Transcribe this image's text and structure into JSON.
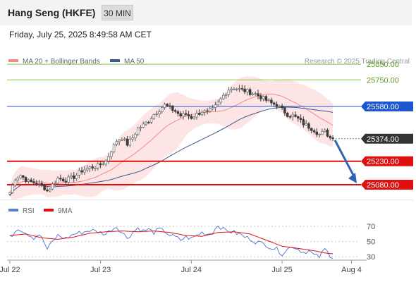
{
  "header": {
    "title": "Hang Seng (HKFE)",
    "timeframe": "30 MIN",
    "datetime": "Friday, July 25, 2025 8:49:58 AM CET"
  },
  "colors": {
    "bullish": "#5a5a5a",
    "bearish": "#3a3a3a",
    "ma20": "#f28a8a",
    "bollinger_fill": "#fde0e0",
    "ma50": "#3a5a8c",
    "green_level": "#8bc34a",
    "blue_level": "#1e56d0",
    "red_level": "#e01010",
    "current_price": "#333333",
    "arrow": "#2e64b4",
    "rsi": "#5b7fd1",
    "rsi_ma": "#e01010"
  },
  "chart_data": [
    {
      "type": "candlestick",
      "legend": [
        {
          "label": "MA 20 + Bollinger Bands",
          "color": "#f28a8a"
        },
        {
          "label": "MA 50",
          "color": "#3a5a8c"
        }
      ],
      "watermark": "Research © 2025 Trading Central",
      "ylim": [
        24990,
        25900
      ],
      "price_levels": [
        {
          "value": "25850.00",
          "kind": "resistance",
          "color": "#8bc34a"
        },
        {
          "value": "25750.00",
          "kind": "resistance",
          "color": "#8bc34a"
        },
        {
          "value": "25580.00",
          "kind": "pivot",
          "color": "#1e56d0"
        },
        {
          "value": "25374.00",
          "kind": "current",
          "color": "#333333"
        },
        {
          "value": "25230.00",
          "kind": "target",
          "color": "#e01010"
        },
        {
          "value": "25080.00",
          "kind": "target",
          "color": "#e01010"
        }
      ],
      "x_ticks": [
        "Jul 22",
        "Jul 23",
        "Jul 24",
        "Jul 25",
        "Aug 4"
      ],
      "x_tick_positions": [
        0,
        34,
        68,
        102,
        128
      ],
      "total_bars": 131,
      "anchors": [
        [
          0,
          25030
        ],
        [
          2,
          25120
        ],
        [
          4,
          25140
        ],
        [
          7,
          25100
        ],
        [
          10,
          25090
        ],
        [
          13,
          25060
        ],
        [
          14,
          25040
        ],
        [
          16,
          25080
        ],
        [
          18,
          25120
        ],
        [
          21,
          25110
        ],
        [
          24,
          25130
        ],
        [
          27,
          25170
        ],
        [
          30,
          25190
        ],
        [
          33,
          25200
        ],
        [
          36,
          25230
        ],
        [
          38,
          25300
        ],
        [
          40,
          25360
        ],
        [
          42,
          25380
        ],
        [
          44,
          25340
        ],
        [
          46,
          25380
        ],
        [
          48,
          25440
        ],
        [
          50,
          25460
        ],
        [
          52,
          25490
        ],
        [
          54,
          25530
        ],
        [
          56,
          25560
        ],
        [
          58,
          25590
        ],
        [
          60,
          25570
        ],
        [
          62,
          25550
        ],
        [
          64,
          25520
        ],
        [
          66,
          25530
        ],
        [
          68,
          25510
        ],
        [
          70,
          25530
        ],
        [
          72,
          25550
        ],
        [
          74,
          25540
        ],
        [
          76,
          25560
        ],
        [
          78,
          25600
        ],
        [
          80,
          25650
        ],
        [
          82,
          25690
        ],
        [
          84,
          25700
        ],
        [
          86,
          25690
        ],
        [
          88,
          25680
        ],
        [
          90,
          25670
        ],
        [
          92,
          25660
        ],
        [
          94,
          25640
        ],
        [
          96,
          25620
        ],
        [
          98,
          25600
        ],
        [
          100,
          25590
        ],
        [
          102,
          25560
        ],
        [
          104,
          25530
        ],
        [
          106,
          25520
        ],
        [
          108,
          25500
        ],
        [
          110,
          25470
        ],
        [
          112,
          25450
        ],
        [
          114,
          25430
        ],
        [
          116,
          25400
        ],
        [
          118,
          25420
        ],
        [
          120,
          25380
        ],
        [
          121,
          25374
        ]
      ],
      "forecast_arrow": {
        "from": 25374,
        "to": 25080
      }
    },
    {
      "type": "line",
      "legend": [
        {
          "label": "RSI",
          "color": "#5b7fd1"
        },
        {
          "label": "9MA",
          "color": "#e01010"
        }
      ],
      "ylim": [
        20,
        85
      ],
      "y_ticks": [
        "70",
        "50",
        "30"
      ],
      "y_tick_values": [
        70,
        50,
        30
      ],
      "rsi_anchors": [
        [
          0,
          55
        ],
        [
          3,
          68
        ],
        [
          6,
          62
        ],
        [
          9,
          55
        ],
        [
          11,
          60
        ],
        [
          13,
          48
        ],
        [
          14,
          40
        ],
        [
          16,
          50
        ],
        [
          18,
          58
        ],
        [
          21,
          54
        ],
        [
          24,
          60
        ],
        [
          27,
          62
        ],
        [
          30,
          65
        ],
        [
          33,
          63
        ],
        [
          36,
          60
        ],
        [
          38,
          66
        ],
        [
          40,
          70
        ],
        [
          42,
          62
        ],
        [
          44,
          55
        ],
        [
          46,
          62
        ],
        [
          48,
          68
        ],
        [
          50,
          64
        ],
        [
          52,
          66
        ],
        [
          54,
          62
        ],
        [
          56,
          66
        ],
        [
          58,
          64
        ],
        [
          60,
          58
        ],
        [
          62,
          56
        ],
        [
          64,
          52
        ],
        [
          66,
          56
        ],
        [
          68,
          54
        ],
        [
          70,
          58
        ],
        [
          72,
          62
        ],
        [
          74,
          60
        ],
        [
          76,
          62
        ],
        [
          78,
          72
        ],
        [
          80,
          66
        ],
        [
          82,
          64
        ],
        [
          84,
          62
        ],
        [
          86,
          60
        ],
        [
          88,
          56
        ],
        [
          90,
          54
        ],
        [
          92,
          50
        ],
        [
          94,
          48
        ],
        [
          96,
          46
        ],
        [
          98,
          42
        ],
        [
          100,
          40
        ],
        [
          102,
          34
        ],
        [
          104,
          40
        ],
        [
          106,
          44
        ],
        [
          108,
          40
        ],
        [
          110,
          36
        ],
        [
          112,
          38
        ],
        [
          114,
          32
        ],
        [
          116,
          30
        ],
        [
          118,
          40
        ],
        [
          120,
          32
        ],
        [
          121,
          30
        ]
      ],
      "ma_anchors": [
        [
          0,
          58
        ],
        [
          6,
          60
        ],
        [
          12,
          55
        ],
        [
          18,
          53
        ],
        [
          24,
          56
        ],
        [
          30,
          61
        ],
        [
          36,
          63
        ],
        [
          42,
          64
        ],
        [
          48,
          63
        ],
        [
          54,
          64
        ],
        [
          60,
          62
        ],
        [
          66,
          58
        ],
        [
          72,
          57
        ],
        [
          78,
          62
        ],
        [
          84,
          63
        ],
        [
          90,
          60
        ],
        [
          96,
          52
        ],
        [
          102,
          44
        ],
        [
          108,
          41
        ],
        [
          114,
          38
        ],
        [
          118,
          35
        ],
        [
          121,
          34
        ]
      ]
    }
  ]
}
